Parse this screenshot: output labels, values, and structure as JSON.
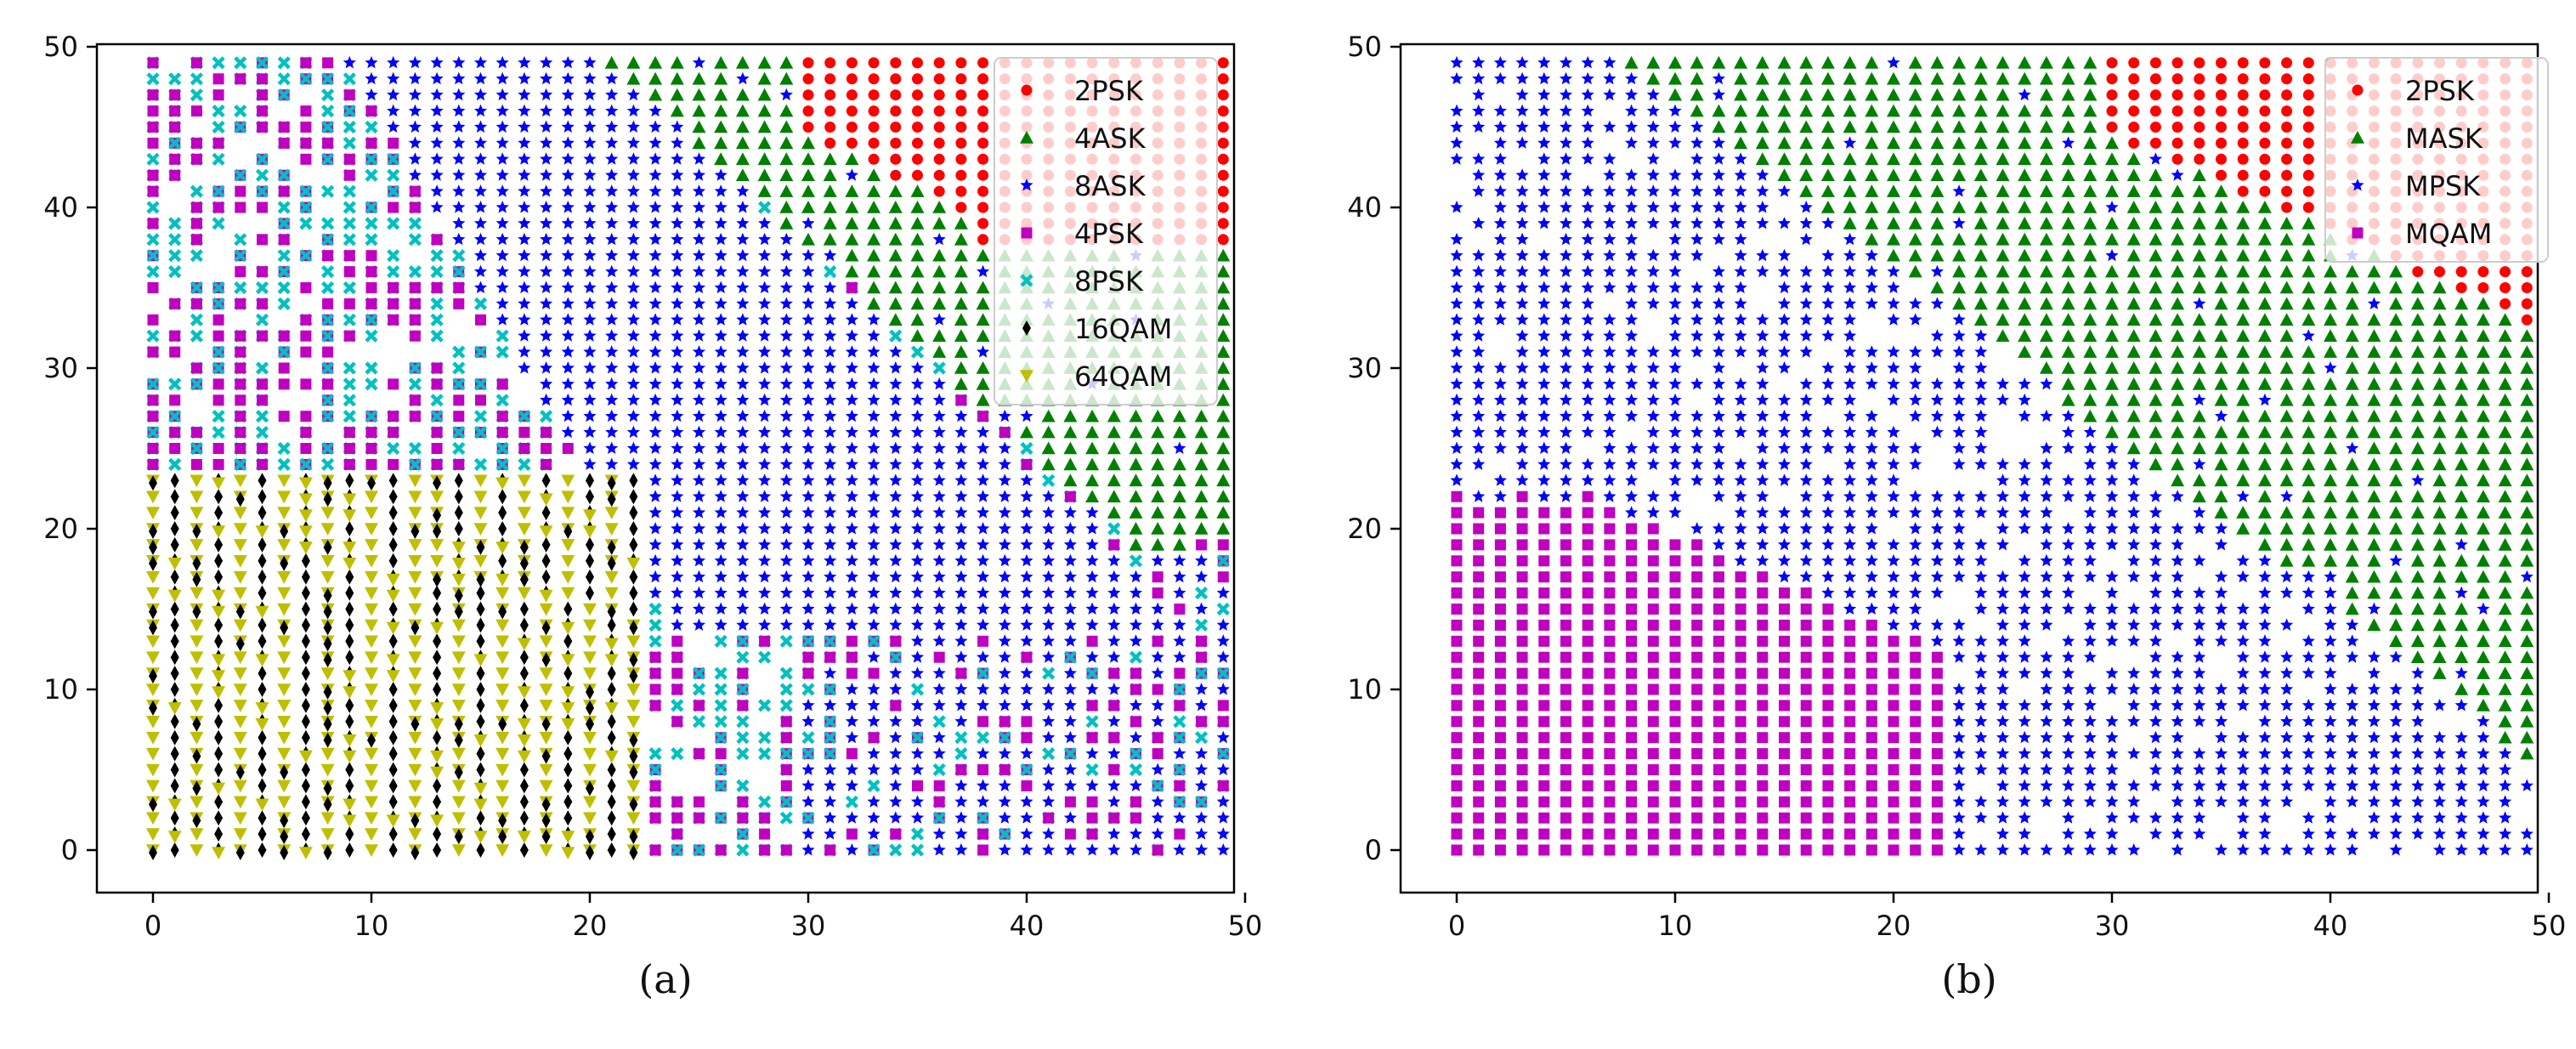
{
  "chart_data": [
    {
      "type": "scatter",
      "caption": "(a)",
      "title": "",
      "xlabel": "",
      "ylabel": "",
      "xlim": [
        -2.5,
        51.5
      ],
      "ylim": [
        -2.5,
        51.5
      ],
      "xticks": [
        0,
        10,
        20,
        30,
        40,
        50
      ],
      "yticks": [
        0,
        10,
        20,
        30,
        40,
        50
      ],
      "grid": false,
      "legend_position": "top-right",
      "description": "Classification map over a 50x50 grid of points (x: 0-49, y: 0-49); each point colored by predicted modulation class.",
      "series": [
        {
          "name": "2PSK",
          "color": "#ff0000",
          "marker": "circle",
          "region": {
            "x": [
              30,
              49
            ],
            "y": [
              38,
              49
            ],
            "boundary": "upper-right block, lower edge descends from y=44 at x=31 to y=39 at x=38"
          }
        },
        {
          "name": "4ASK",
          "color": "#008000",
          "marker": "triangle-up",
          "region": {
            "x": [
              21,
              49
            ],
            "y": [
              19,
              49
            ],
            "boundary": "upper band from x=21-30 at top, widening to the right edge down to y~19"
          }
        },
        {
          "name": "8ASK",
          "color": "#0000ff",
          "marker": "star",
          "region": {
            "x": [
              7,
              49
            ],
            "y": [
              0,
              49
            ],
            "boundary": "diagonal band from top-middle (x~9-21) down to bottom-right (x~30-49, y 0-21)"
          }
        },
        {
          "name": "4PSK",
          "color": "#c000c0",
          "marker": "square",
          "region": {
            "x": [
              0,
              48
            ],
            "y": [
              0,
              49
            ],
            "boundary": "interleaved with 8PSK in the upper-left and middle-lower region"
          }
        },
        {
          "name": "8PSK",
          "color": "#00c0c0",
          "marker": "x",
          "region": {
            "x": [
              0,
              48
            ],
            "y": [
              0,
              49
            ],
            "boundary": "upper-left block (y 23-49) and lower-middle block (x 23-48, y 0-22)"
          }
        },
        {
          "name": "16QAM",
          "color": "#000000",
          "marker": "diamond",
          "region": {
            "x": [
              0,
              22
            ],
            "y": [
              0,
              23
            ],
            "boundary": "lower-left block, alternating columns with 64QAM"
          }
        },
        {
          "name": "64QAM",
          "color": "#bfbf00",
          "marker": "triangle-down",
          "region": {
            "x": [
              0,
              22
            ],
            "y": [
              0,
              22
            ],
            "boundary": "lower-left block, alternating columns with 16QAM"
          }
        }
      ]
    },
    {
      "type": "scatter",
      "caption": "(b)",
      "title": "",
      "xlabel": "",
      "ylabel": "",
      "xlim": [
        -2.5,
        51.5
      ],
      "ylim": [
        -2.5,
        51.5
      ],
      "xticks": [
        0,
        10,
        20,
        30,
        40,
        50
      ],
      "yticks": [
        0,
        10,
        20,
        30,
        40,
        50
      ],
      "grid": false,
      "legend_position": "top-right",
      "description": "Classification map over a 50x50 grid of points (x: 0-49, y: 0-49); each point colored by predicted modulation family.",
      "series": [
        {
          "name": "2PSK",
          "color": "#ff0000",
          "marker": "circle",
          "region": {
            "x": [
              30,
              49
            ],
            "y": [
              33,
              49
            ],
            "boundary": "upper-right block, lower edge descends from y=44 at x=31 to y=33 at x=49"
          }
        },
        {
          "name": "MASK",
          "color": "#008000",
          "marker": "triangle-up",
          "region": {
            "x": [
              7,
              49
            ],
            "y": [
              6,
              49
            ],
            "boundary": "upper-middle band widening to the right edge, reaching down to y~6 near x=41-49"
          }
        },
        {
          "name": "MPSK",
          "color": "#0000ff",
          "marker": "star",
          "region": {
            "x": [
              0,
              49
            ],
            "y": [
              0,
              49
            ],
            "boundary": "left side and lower-right area, fills gaps outside other classes"
          }
        },
        {
          "name": "MQAM",
          "color": "#c000c0",
          "marker": "square",
          "region": {
            "x": [
              0,
              22
            ],
            "y": [
              0,
              23
            ],
            "boundary": "lower-left block, top edge ~y=21 to 23, descending to y~12 at x=21"
          }
        }
      ]
    }
  ]
}
